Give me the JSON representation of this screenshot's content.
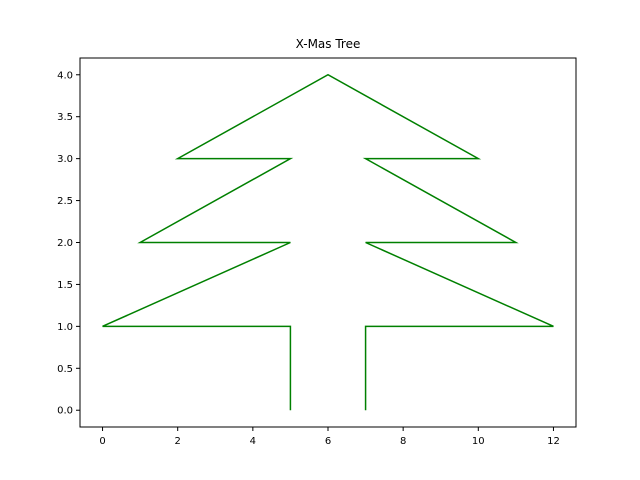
{
  "chart_data": {
    "type": "line",
    "title": "X-Mas Tree",
    "xlabel": "",
    "ylabel": "",
    "xlim": [
      -0.6,
      12.6
    ],
    "ylim": [
      -0.2,
      4.2
    ],
    "x_ticks": [
      0,
      2,
      4,
      6,
      8,
      10,
      12
    ],
    "x_tick_labels": [
      "0",
      "2",
      "4",
      "6",
      "8",
      "10",
      "12"
    ],
    "y_ticks": [
      0.0,
      0.5,
      1.0,
      1.5,
      2.0,
      2.5,
      3.0,
      3.5,
      4.0
    ],
    "y_tick_labels": [
      "0.0",
      "0.5",
      "1.0",
      "1.5",
      "2.0",
      "2.5",
      "3.0",
      "3.5",
      "4.0"
    ],
    "grid": false,
    "series": [
      {
        "color": "#008000",
        "x": [
          5,
          5,
          0,
          5,
          1,
          5,
          2,
          6,
          10,
          7,
          11,
          7,
          12,
          7,
          7
        ],
        "y": [
          0,
          1,
          1,
          2,
          2,
          3,
          3,
          4,
          3,
          3,
          2,
          2,
          1,
          1,
          0
        ]
      }
    ]
  }
}
